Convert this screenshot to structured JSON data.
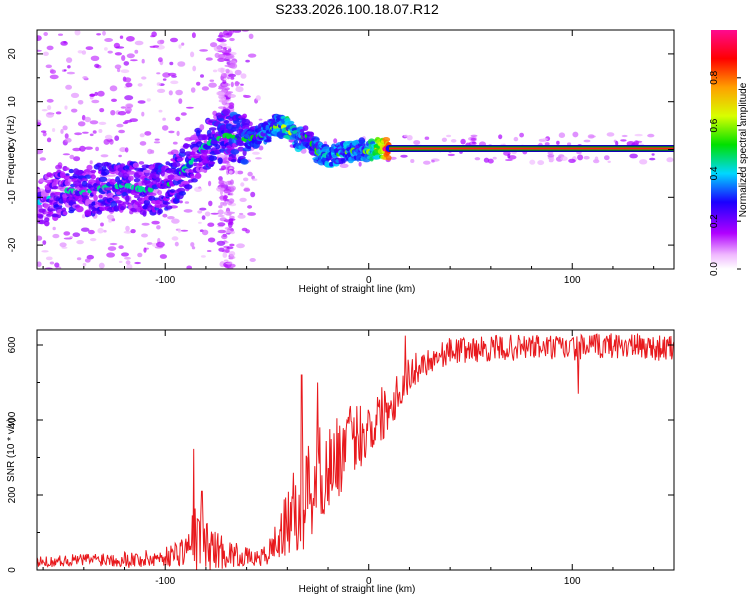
{
  "title": "S233.2026.100.18.07.R12",
  "colors": {
    "snr_line": "#e8191d",
    "track_center": "#ff1a1a",
    "track_halo": "#00c800",
    "scatter": "#8a2be2"
  },
  "chart_data": [
    {
      "type": "heatmap",
      "id": "spectrogram",
      "xlabel": "Height of straight line (km)",
      "ylabel": "Frequency (Hz)",
      "xlim": [
        -163,
        150
      ],
      "ylim": [
        -25,
        25
      ],
      "x_ticks": [
        -100,
        0,
        100
      ],
      "y_ticks": [
        -20,
        -10,
        0,
        10,
        20
      ],
      "x_tick_labels": [
        "-100",
        "0",
        "100"
      ],
      "y_tick_labels": [
        "-20",
        "-10",
        "0",
        "10",
        "20"
      ],
      "colorbar": {
        "label": "Normalized spectral amplitude",
        "range": [
          0,
          1
        ],
        "ticks": [
          "0.0",
          "0.2",
          "0.4",
          "0.6",
          "0.8"
        ],
        "tick_values": [
          0.0,
          0.2,
          0.4,
          0.6,
          0.8
        ]
      },
      "ridge": {
        "x": [
          -160,
          -150,
          -140,
          -130,
          -120,
          -110,
          -100,
          -90,
          -80,
          -70,
          -60,
          -50,
          -45,
          -40,
          -35,
          -30,
          -25,
          -20,
          -15,
          -10,
          -5,
          0,
          5,
          10,
          150
        ],
        "y": [
          -11,
          -8.5,
          -9,
          -8,
          -7.5,
          -8.5,
          -8,
          -4,
          1,
          3,
          2,
          3.5,
          5,
          4.5,
          2,
          3,
          -0.5,
          -1.5,
          -1,
          -0.5,
          0,
          -0.5,
          0,
          0.2,
          0.2
        ],
        "amplitude": [
          0.25,
          0.3,
          0.3,
          0.3,
          0.3,
          0.3,
          0.35,
          0.3,
          0.3,
          0.35,
          0.35,
          0.4,
          0.45,
          0.5,
          0.45,
          0.35,
          0.4,
          0.45,
          0.4,
          0.45,
          0.4,
          0.45,
          0.6,
          0.95,
          0.95
        ]
      },
      "flat_track": {
        "x_start": 10,
        "x_end": 150,
        "y": 0.2,
        "amplitude": 1.0
      }
    },
    {
      "type": "line",
      "id": "snr",
      "xlabel": "Height of straight line (km)",
      "ylabel": "SNR (10 * v/v)",
      "xlim": [
        -163,
        150
      ],
      "ylim": [
        0,
        640
      ],
      "x_ticks": [
        -100,
        0,
        100
      ],
      "y_ticks": [
        0,
        200,
        400,
        600
      ],
      "x_tick_labels": [
        "-100",
        "0",
        "100"
      ],
      "y_tick_labels": [
        "0",
        "200",
        "400",
        "600"
      ],
      "series": [
        {
          "name": "SNR",
          "x": [
            -163,
            -150,
            -130,
            -110,
            -100,
            -90,
            -85,
            -80,
            -70,
            -60,
            -55,
            -50,
            -45,
            -40,
            -35,
            -30,
            -25,
            -20,
            -15,
            -10,
            -5,
            0,
            5,
            10,
            15,
            20,
            25,
            30,
            40,
            60,
            80,
            100,
            120,
            150
          ],
          "y": [
            20,
            25,
            30,
            28,
            35,
            55,
            80,
            65,
            45,
            35,
            30,
            40,
            80,
            120,
            170,
            210,
            250,
            270,
            300,
            340,
            360,
            380,
            410,
            440,
            480,
            520,
            545,
            560,
            585,
            590,
            595,
            590,
            600,
            590
          ],
          "amplitude": [
            15,
            15,
            20,
            25,
            25,
            45,
            100,
            70,
            40,
            25,
            20,
            30,
            60,
            90,
            130,
            150,
            140,
            120,
            110,
            100,
            90,
            90,
            80,
            70,
            60,
            50,
            40,
            35,
            35,
            35,
            35,
            35,
            35,
            35
          ],
          "peaks": [
            {
              "x": -86,
              "y": 323
            },
            {
              "x": -82,
              "y": 210
            },
            {
              "x": -33,
              "y": 520
            },
            {
              "x": -25,
              "y": 500
            },
            {
              "x": 18,
              "y": 625
            },
            {
              "x": 103,
              "y": 470
            }
          ]
        }
      ]
    }
  ]
}
